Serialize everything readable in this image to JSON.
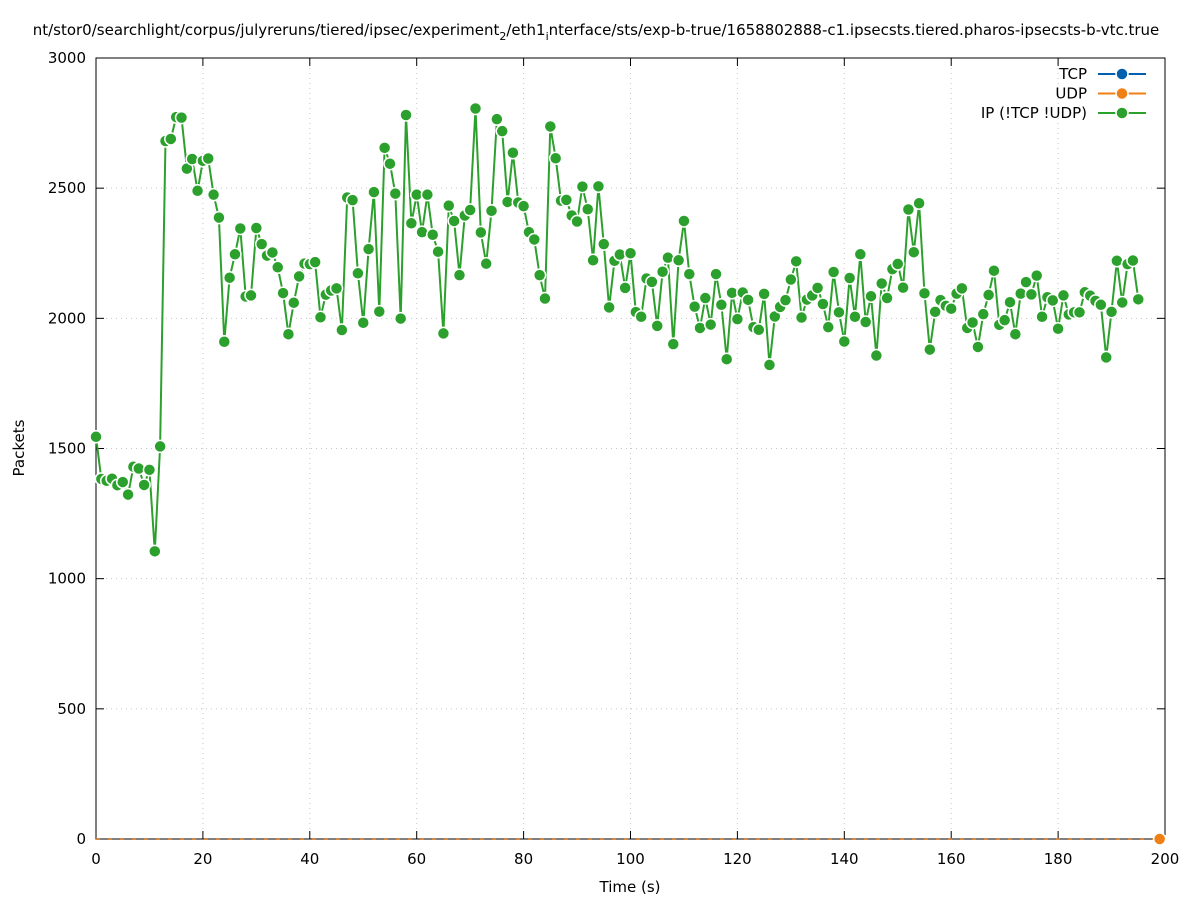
{
  "chart_data": {
    "type": "line",
    "title_parts": [
      {
        "text": "nt/stor0/searchlight/corpus/julyreruns/tiered/ipsec/experiment",
        "style": "normal"
      },
      {
        "text": "2",
        "style": "sub"
      },
      {
        "text": "/eth1",
        "style": "normal"
      },
      {
        "text": "i",
        "style": "sub"
      },
      {
        "text": "nterface/sts/exp-b-true/1658802888-c1.ipsecsts.tiered.pharos-ipsecsts-b-vtc.true",
        "style": "normal"
      }
    ],
    "xlabel": "Time (s)",
    "ylabel": "Packets",
    "xlim": [
      0,
      200
    ],
    "ylim": [
      0,
      3000
    ],
    "xticks": [
      0,
      20,
      40,
      60,
      80,
      100,
      120,
      140,
      160,
      180,
      200
    ],
    "yticks": [
      0,
      500,
      1000,
      1500,
      2000,
      2500,
      3000
    ],
    "grid": true,
    "legend_position": "top-right",
    "series": [
      {
        "name": "TCP",
        "color": "#0060ad",
        "x": [
          0,
          199
        ],
        "y": [
          0,
          0
        ]
      },
      {
        "name": "UDP",
        "color": "#f07f16",
        "x": [
          0,
          199
        ],
        "y": [
          0,
          0
        ]
      },
      {
        "name": "IP (!TCP  !UDP)",
        "color": "#2ca02c",
        "y": [
          1545,
          1383,
          1376,
          1384,
          1359,
          1371,
          1323,
          1430,
          1423,
          1360,
          1418,
          1105,
          1508,
          2681,
          2689,
          2773,
          2771,
          2575,
          2612,
          2490,
          2605,
          2614,
          2475,
          2387,
          1910,
          2156,
          2246,
          2345,
          2084,
          2088,
          2347,
          2285,
          2241,
          2253,
          2196,
          2097,
          1939,
          2060,
          2161,
          2210,
          2208,
          2216,
          2004,
          2091,
          2107,
          2115,
          1955,
          2464,
          2454,
          2173,
          1983,
          2266,
          2485,
          2026,
          2655,
          2594,
          2479,
          1999,
          2781,
          2365,
          2475,
          2331,
          2475,
          2321,
          2256,
          1942,
          2433,
          2374,
          2166,
          2395,
          2416,
          2806,
          2330,
          2210,
          2413,
          2765,
          2719,
          2447,
          2636,
          2445,
          2431,
          2331,
          2303,
          2166,
          2076,
          2737,
          2615,
          2452,
          2455,
          2395,
          2372,
          2506,
          2419,
          2223,
          2507,
          2285,
          2042,
          2221,
          2245,
          2117,
          2250,
          2024,
          2006,
          2153,
          2140,
          1971,
          2179,
          2233,
          1901,
          2223,
          2374,
          2170,
          2045,
          1963,
          2078,
          1976,
          2170,
          2052,
          1843,
          2098,
          1997,
          2099,
          2071,
          1966,
          1956,
          2094,
          1821,
          2007,
          2044,
          2070,
          2149,
          2219,
          2003,
          2072,
          2088,
          2117,
          2055,
          1966,
          2178,
          2023,
          1911,
          2155,
          2006,
          2246,
          1986,
          2085,
          1857,
          2134,
          2078,
          2189,
          2209,
          2118,
          2418,
          2254,
          2442,
          2096,
          1880,
          2025,
          2070,
          2048,
          2037,
          2095,
          2115,
          1963,
          1984,
          1890,
          2016,
          2090,
          2183,
          1975,
          1993,
          2062,
          1939,
          2095,
          2139,
          2092,
          2164,
          2006,
          2081,
          2069,
          1960,
          2088,
          2015,
          2023,
          2023,
          2100,
          2087,
          2067,
          2052,
          1850,
          2025,
          2221,
          2061,
          2208,
          2222,
          2073
        ]
      }
    ]
  }
}
